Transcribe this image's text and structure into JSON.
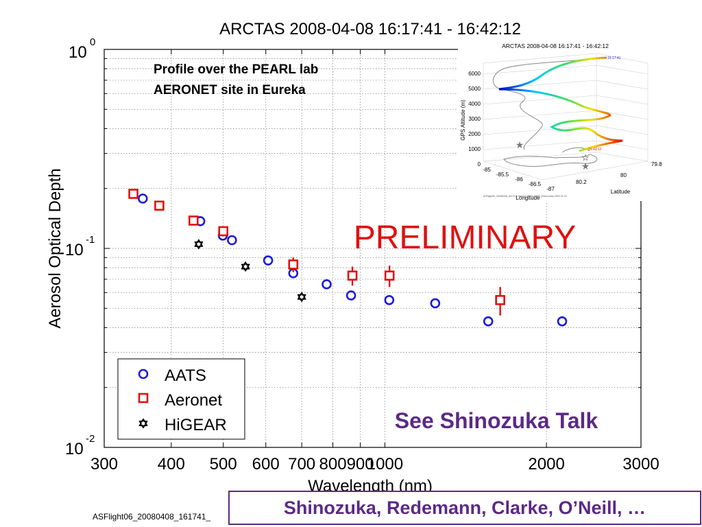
{
  "chart_data": {
    "type": "scatter",
    "title": "ARCTAS 2008-04-08 16:17:41 - 16:42:12",
    "xlabel": "Wavelength (nm)",
    "ylabel": "Aerosol Optical Depth",
    "xscale": "log",
    "yscale": "log",
    "xlim": [
      300,
      3000
    ],
    "ylim": [
      0.01,
      1
    ],
    "grid": true,
    "legend_position": "bottom-left",
    "x_tick_labels": [
      "300",
      "400",
      "500",
      "600",
      "700",
      "800",
      "900",
      "1000",
      "2000",
      "3000"
    ],
    "y_tick_labels": [
      {
        "base": "10",
        "exp": "0"
      },
      {
        "base": "10",
        "exp": "-1"
      },
      {
        "base": "10",
        "exp": "-2"
      }
    ],
    "annotation": "Profile over the PEARL lab\nAERONET site in Eureka",
    "watermark": "PRELIMINARY",
    "note": "See Shinozuka Talk",
    "series": [
      {
        "name": "AATS",
        "marker": "circle",
        "color": "#1a1adc",
        "points": [
          {
            "x": 354,
            "y": 0.178
          },
          {
            "x": 453,
            "y": 0.137
          },
          {
            "x": 499,
            "y": 0.116
          },
          {
            "x": 519,
            "y": 0.11
          },
          {
            "x": 606,
            "y": 0.087
          },
          {
            "x": 675,
            "y": 0.075
          },
          {
            "x": 779,
            "y": 0.066
          },
          {
            "x": 865,
            "y": 0.058
          },
          {
            "x": 1019,
            "y": 0.055
          },
          {
            "x": 1241,
            "y": 0.053
          },
          {
            "x": 1558,
            "y": 0.043
          },
          {
            "x": 2139,
            "y": 0.043
          }
        ]
      },
      {
        "name": "Aeronet",
        "marker": "square",
        "color": "#e01010",
        "points": [
          {
            "x": 340,
            "y": 0.188,
            "err": 0.004
          },
          {
            "x": 380,
            "y": 0.164,
            "err": 0.004
          },
          {
            "x": 440,
            "y": 0.138,
            "err": 0.004
          },
          {
            "x": 500,
            "y": 0.122,
            "err": 0.006
          },
          {
            "x": 675,
            "y": 0.083,
            "err": 0.007
          },
          {
            "x": 870,
            "y": 0.073,
            "err": 0.008
          },
          {
            "x": 1020,
            "y": 0.073,
            "err": 0.009
          },
          {
            "x": 1640,
            "y": 0.055,
            "err": 0.009
          }
        ]
      },
      {
        "name": "HiGEAR",
        "marker": "star",
        "color": "#000000",
        "points": [
          {
            "x": 450,
            "y": 0.105
          },
          {
            "x": 550,
            "y": 0.081
          },
          {
            "x": 700,
            "y": 0.057
          }
        ]
      }
    ]
  },
  "inset": {
    "title": "ARCTAS 2008-04-08 16:17:41 - 16:42:12",
    "z_axis_label": "GPS Altitude (m)",
    "z_ticks": [
      "0",
      "1000",
      "2000",
      "3000",
      "4000",
      "5000",
      "6000"
    ],
    "x_axis_label": "Longitude",
    "x_ticks": [
      "-85",
      "-85.5",
      "-86",
      "-86.5",
      "-87"
    ],
    "y_axis_label": "Latitude",
    "y_ticks": [
      "79.8",
      "80",
      "80.2"
    ],
    "start_label": "16:17:41",
    "end_label": "16:42:12",
    "footer": "ASFlight06_20080408_161741_164212_AATS.traj3D (Shinozuka) 2009-01-22"
  },
  "footer": {
    "filename": "ASFlight06_20080408_161741_",
    "credits": "Shinozuka, Redemann, Clarke, O’Neill, …"
  }
}
